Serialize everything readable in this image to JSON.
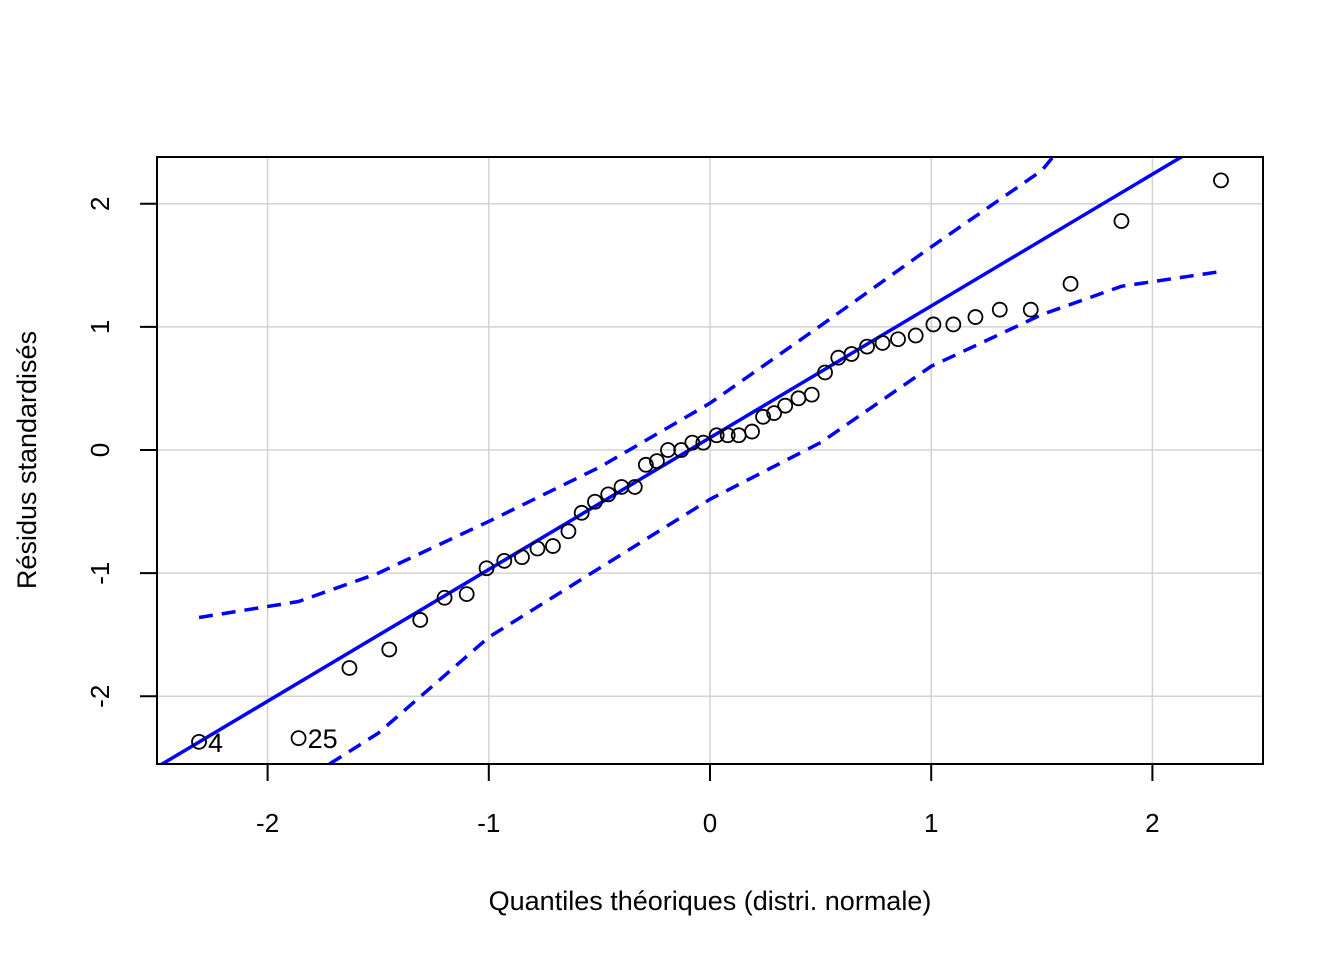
{
  "chart_data": {
    "type": "scatter",
    "subtype": "qq-plot",
    "title": "",
    "xlabel": "Quantiles théoriques (distri. normale)",
    "ylabel": "Résidus standardisés",
    "xlim": [
      -2.5,
      2.5
    ],
    "ylim": [
      -2.55,
      2.38
    ],
    "xticks": [
      -2,
      -1,
      0,
      1,
      2
    ],
    "yticks": [
      -2,
      -1,
      0,
      1,
      2
    ],
    "grid": true,
    "colors": {
      "points": "#000000",
      "line": "#0000ff",
      "envelope": "#0000ff",
      "grid": "#d3d3d3"
    },
    "points": {
      "x": [
        -2.31,
        -1.86,
        -1.63,
        -1.45,
        -1.31,
        -1.2,
        -1.1,
        -1.01,
        -0.93,
        -0.85,
        -0.78,
        -0.71,
        -0.64,
        -0.58,
        -0.52,
        -0.46,
        -0.4,
        -0.34,
        -0.29,
        -0.24,
        -0.19,
        -0.13,
        -0.08,
        -0.03,
        0.03,
        0.08,
        0.13,
        0.19,
        0.24,
        0.29,
        0.34,
        0.4,
        0.46,
        0.52,
        0.58,
        0.64,
        0.71,
        0.78,
        0.85,
        0.93,
        1.01,
        1.1,
        1.2,
        1.31,
        1.45,
        1.63,
        1.86,
        2.31
      ],
      "y": [
        -2.37,
        -2.34,
        -1.77,
        -1.62,
        -1.38,
        -1.2,
        -1.17,
        -0.96,
        -0.9,
        -0.87,
        -0.8,
        -0.78,
        -0.66,
        -0.51,
        -0.42,
        -0.36,
        -0.3,
        -0.3,
        -0.12,
        -0.09,
        0.0,
        0.0,
        0.06,
        0.06,
        0.12,
        0.12,
        0.12,
        0.15,
        0.27,
        0.3,
        0.36,
        0.42,
        0.45,
        0.63,
        0.75,
        0.78,
        0.84,
        0.87,
        0.9,
        0.93,
        1.02,
        1.02,
        1.08,
        1.14,
        1.14,
        1.35,
        1.86,
        2.19
      ]
    },
    "labeled_points": [
      {
        "label": "4",
        "x": -2.31,
        "y": -2.37
      },
      {
        "label": "25",
        "x": -1.86,
        "y": -2.34
      }
    ],
    "reference_line": {
      "intercept": 0.1,
      "slope": 1.07
    },
    "envelope_upper": {
      "x": [
        -2.31,
        -1.86,
        -1.5,
        -1.0,
        -0.5,
        0.0,
        0.5,
        1.0,
        1.5,
        1.55
      ],
      "y": [
        -1.36,
        -1.23,
        -1.0,
        -0.58,
        -0.14,
        0.38,
        1.01,
        1.65,
        2.27,
        2.38
      ]
    },
    "envelope_lower": {
      "x": [
        -1.72,
        -1.5,
        -1.0,
        -0.5,
        0.0,
        0.5,
        1.0,
        1.5,
        1.86,
        2.31
      ],
      "y": [
        -2.55,
        -2.3,
        -1.52,
        -0.96,
        -0.4,
        0.06,
        0.68,
        1.1,
        1.33,
        1.45
      ]
    }
  }
}
